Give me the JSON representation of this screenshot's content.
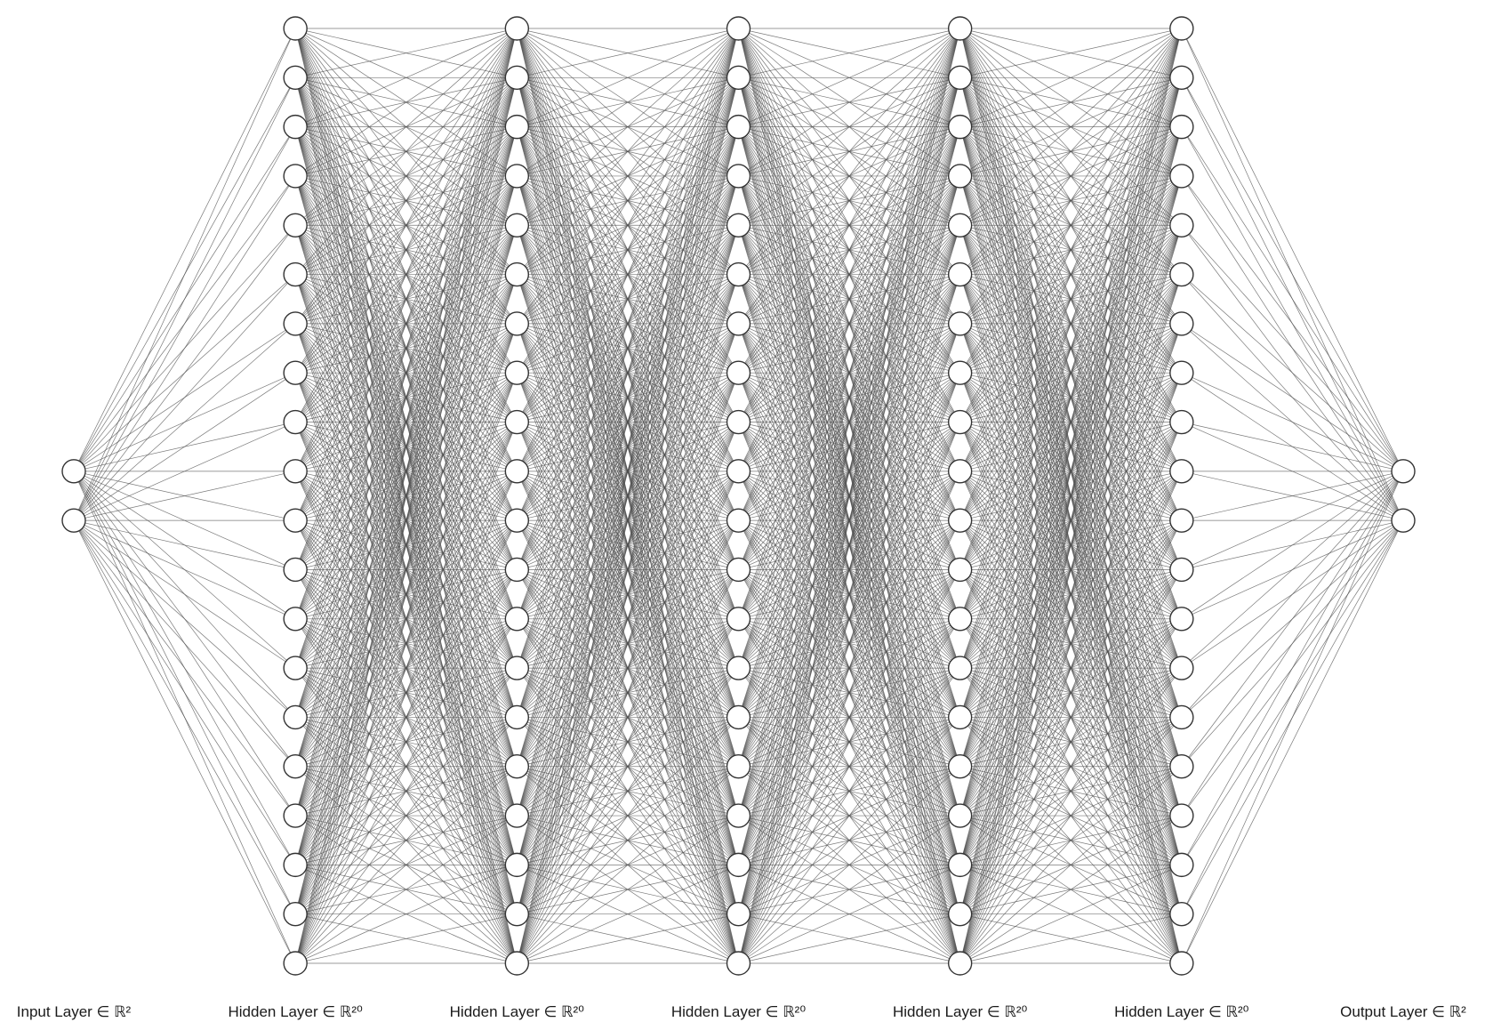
{
  "diagram": {
    "type": "fully-connected-neural-network",
    "colors": {
      "background": "#ffffff",
      "edge": "#4d4d4d",
      "node_stroke": "#333333",
      "node_fill": "#ffffff",
      "label": "#1a1a1a"
    },
    "layers": [
      {
        "label": "Input Layer ∈ ℝ²",
        "units": 2
      },
      {
        "label": "Hidden Layer ∈ ℝ²⁰",
        "units": 20
      },
      {
        "label": "Hidden Layer ∈ ℝ²⁰",
        "units": 20
      },
      {
        "label": "Hidden Layer ∈ ℝ²⁰",
        "units": 20
      },
      {
        "label": "Hidden Layer ∈ ℝ²⁰",
        "units": 20
      },
      {
        "label": "Hidden Layer ∈ ℝ²⁰",
        "units": 20
      },
      {
        "label": "Output Layer ∈ ℝ²",
        "units": 2
      }
    ]
  }
}
